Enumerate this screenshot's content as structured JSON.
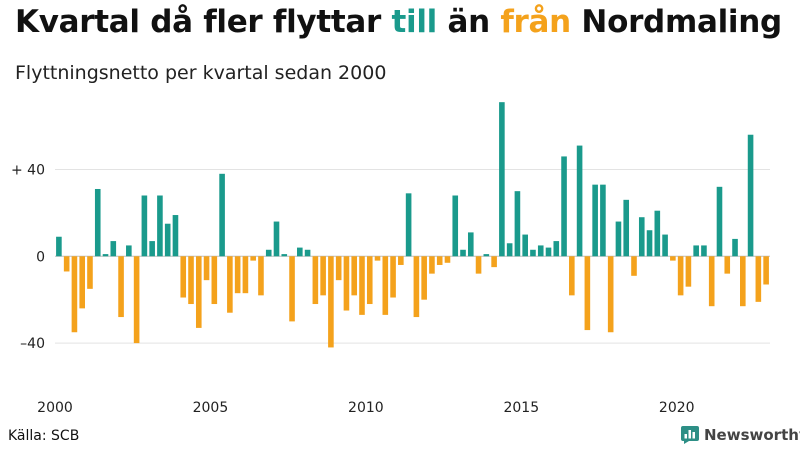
{
  "title": {
    "part1": "Kvartal då fler flyttar ",
    "part2": "till",
    "part3": " än ",
    "part4": "från",
    "part5": " Nordmaling"
  },
  "subtitle": "Flyttningsnetto per kvartal sedan 2000",
  "source": "Källa: SCB",
  "brand": "Newsworthy",
  "colors": {
    "positive": "#1a9a8c",
    "negative": "#f4a21c",
    "brand_icon": "#2d8f86"
  },
  "chart_data": {
    "type": "bar",
    "ylim": [
      -57,
      72
    ],
    "y_ticks": [
      {
        "value": 40,
        "label": "+ 40"
      },
      {
        "value": 0,
        "label": "0"
      },
      {
        "value": -40,
        "label": "–40"
      }
    ],
    "x_ticks": [
      {
        "value": 2000,
        "label": "2000"
      },
      {
        "value": 2005,
        "label": "2005"
      },
      {
        "value": 2010,
        "label": "2010"
      },
      {
        "value": 2015,
        "label": "2015"
      },
      {
        "value": 2020,
        "label": "2020"
      }
    ],
    "x_start": 2000,
    "periods_per_year": 4,
    "values": [
      9,
      -7,
      -35,
      -24,
      -15,
      31,
      1,
      7,
      -28,
      5,
      -40,
      28,
      7,
      28,
      15,
      19,
      -19,
      -22,
      -33,
      -11,
      -22,
      38,
      -26,
      -17,
      -17,
      -2,
      -18,
      3,
      16,
      1,
      -30,
      4,
      3,
      -22,
      -18,
      -42,
      -11,
      -25,
      -18,
      -27,
      -22,
      -2,
      -27,
      -19,
      -4,
      29,
      -28,
      -20,
      -8,
      -4,
      -3,
      28,
      3,
      11,
      -8,
      1,
      -5,
      71,
      6,
      30,
      10,
      3,
      5,
      4,
      7,
      46,
      -18,
      51,
      -34,
      33,
      33,
      -35,
      16,
      26,
      -9,
      18,
      12,
      21,
      10,
      -2,
      -18,
      -14,
      5,
      5,
      -23,
      32,
      -8,
      8,
      -23,
      56,
      -21,
      -13
    ]
  }
}
